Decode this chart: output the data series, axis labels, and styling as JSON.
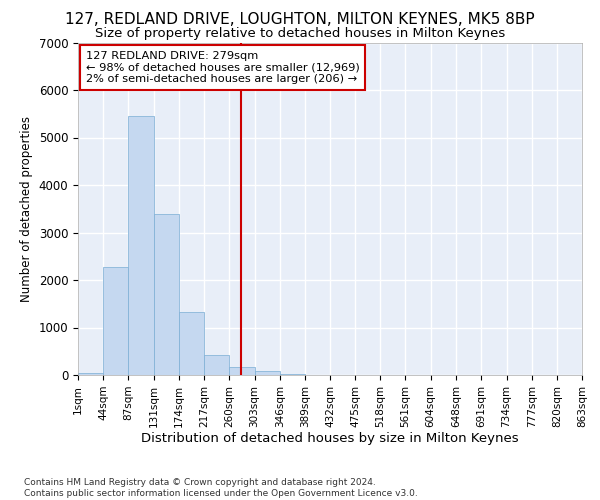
{
  "title1": "127, REDLAND DRIVE, LOUGHTON, MILTON KEYNES, MK5 8BP",
  "title2": "Size of property relative to detached houses in Milton Keynes",
  "xlabel": "Distribution of detached houses by size in Milton Keynes",
  "ylabel": "Number of detached properties",
  "footnote": "Contains HM Land Registry data © Crown copyright and database right 2024.\nContains public sector information licensed under the Open Government Licence v3.0.",
  "bar_edges": [
    1,
    44,
    87,
    131,
    174,
    217,
    260,
    303,
    346,
    389,
    432,
    475,
    518,
    561,
    604,
    648,
    691,
    734,
    777,
    820,
    863
  ],
  "bar_heights": [
    50,
    2270,
    5450,
    3380,
    1320,
    430,
    160,
    80,
    20,
    5,
    2,
    1,
    0,
    0,
    0,
    0,
    0,
    0,
    0,
    0
  ],
  "bar_color": "#c5d8f0",
  "bar_edgecolor": "#7aadd4",
  "vline_x": 279,
  "vline_color": "#cc0000",
  "ylim": [
    0,
    7000
  ],
  "yticks": [
    0,
    1000,
    2000,
    3000,
    4000,
    5000,
    6000,
    7000
  ],
  "annotation_line1": "127 REDLAND DRIVE: 279sqm",
  "annotation_line2": "← 98% of detached houses are smaller (12,969)",
  "annotation_line3": "2% of semi-detached houses are larger (206) →",
  "background_color": "#e8eef8",
  "fig_background": "#ffffff",
  "grid_color": "#ffffff",
  "title1_fontsize": 11,
  "title2_fontsize": 9.5,
  "tick_label_fontsize": 7.5,
  "ylabel_fontsize": 8.5,
  "xlabel_fontsize": 9.5
}
